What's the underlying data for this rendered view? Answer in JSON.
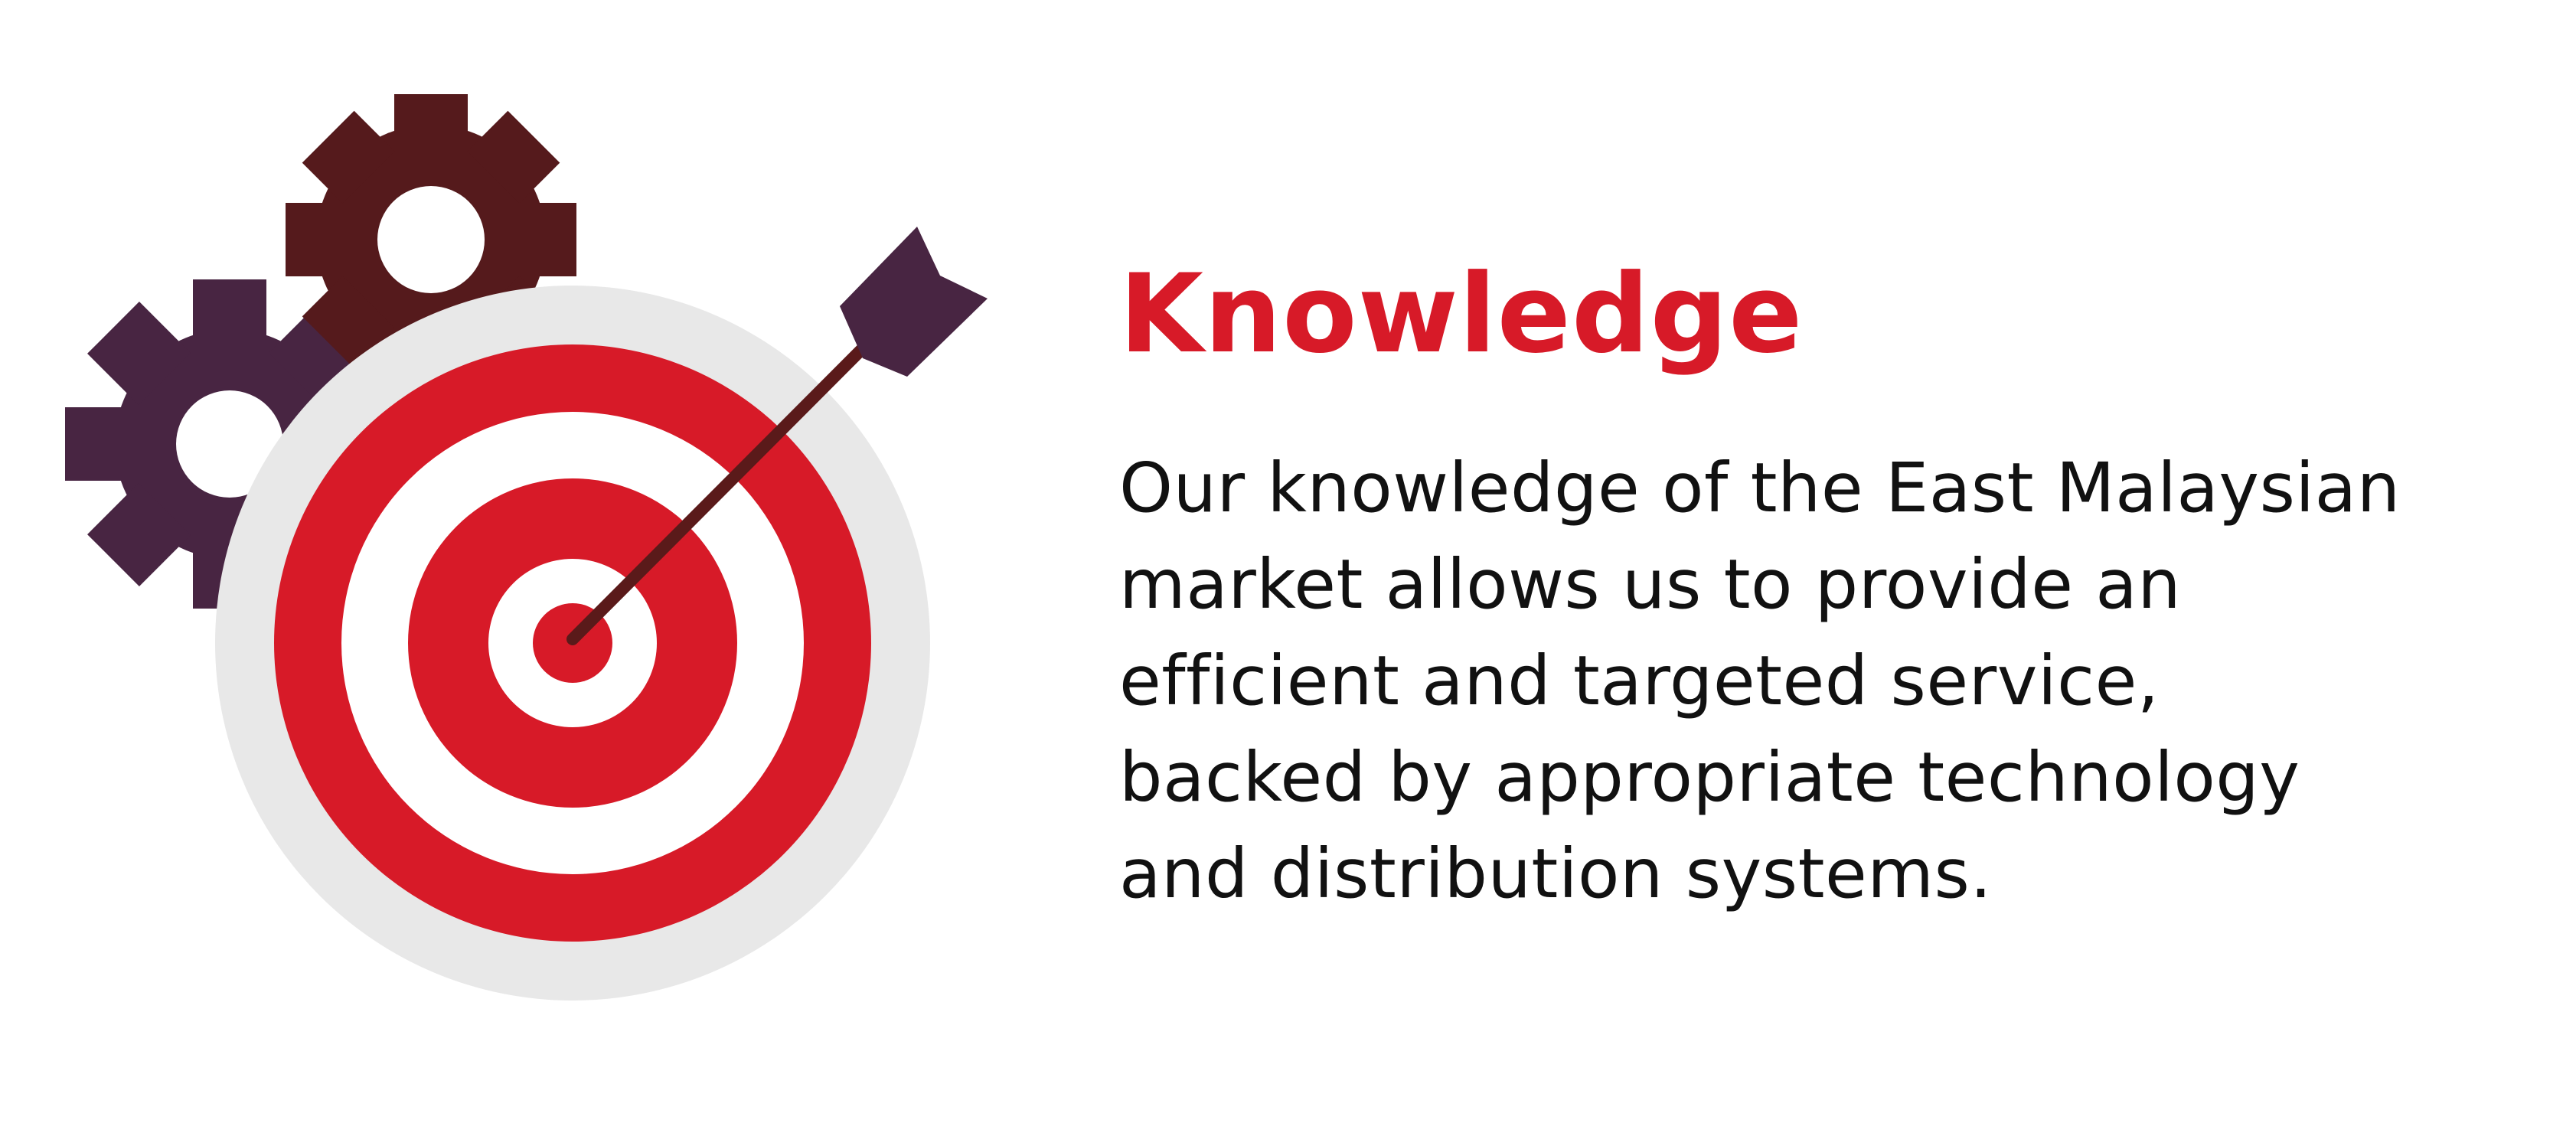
{
  "heading": "Knowledge",
  "description_lines": [
    "Our knowledge of the East Malaysian",
    "market allows us to provide an",
    "efficient and targeted service,",
    "backed by appropriate technology",
    "and distribution systems."
  ],
  "colors": {
    "accent_red": "#d71a28",
    "text": "#111111",
    "gear_dark": "#551a1c",
    "gear_purple": "#482542",
    "target_backdrop": "#e8e8e8",
    "dart": "#482542",
    "dart_shaft": "#5a1a1a"
  },
  "icons": [
    "gear-icon",
    "gear-icon",
    "target-icon",
    "dart-icon"
  ]
}
